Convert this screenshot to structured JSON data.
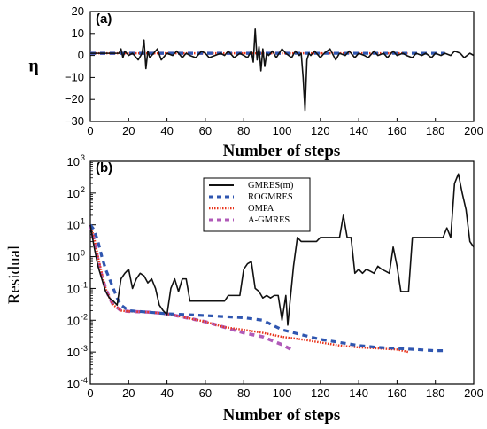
{
  "colors": {
    "gmres": "#111111",
    "rogmres": "#2f56b0",
    "ompa": "#e8341c",
    "agmres": "#b05ab8"
  },
  "chart_data": [
    {
      "type": "line",
      "panel_label": "(a)",
      "xlabel": "Number of steps",
      "ylabel": "η",
      "xlim": [
        0,
        200
      ],
      "ylim": [
        -30,
        20
      ],
      "x_ticks": [
        "0",
        "20",
        "40",
        "60",
        "80",
        "100",
        "120",
        "140",
        "160",
        "180",
        "200"
      ],
      "y_ticks": [
        "20",
        "10",
        "0",
        "−10",
        "−20",
        "−30"
      ],
      "grid": false,
      "series": [
        {
          "name": "GMRES(m)",
          "x": [
            0,
            10,
            15,
            16,
            17,
            18,
            20,
            22,
            25,
            27,
            28,
            29,
            30,
            31,
            33,
            35,
            37,
            40,
            43,
            45,
            48,
            50,
            52,
            55,
            58,
            60,
            62,
            65,
            68,
            70,
            72,
            75,
            78,
            80,
            82,
            84,
            85,
            86,
            87,
            88,
            89,
            90,
            91,
            92,
            93,
            95,
            97,
            100,
            102,
            105,
            107,
            109,
            110,
            111,
            112,
            113,
            114,
            115,
            117,
            120,
            122,
            125,
            128,
            130,
            133,
            135,
            138,
            140,
            143,
            145,
            148,
            150,
            153,
            155,
            158,
            160,
            163,
            165,
            168,
            170,
            173,
            175,
            178,
            180,
            183,
            185,
            188,
            190,
            193,
            195,
            198,
            200
          ],
          "y": [
            1,
            1,
            1,
            3,
            -1,
            2,
            0,
            1,
            -2,
            1,
            7,
            -6,
            2,
            -1,
            1,
            3,
            -2,
            1,
            0,
            2,
            -1,
            1,
            0,
            -1,
            2,
            1,
            -1,
            0,
            1,
            0,
            2,
            -1,
            1,
            0,
            -1,
            2,
            -3,
            12,
            -2,
            4,
            -7,
            3,
            -5,
            1,
            0,
            2,
            -1,
            3,
            1,
            -1,
            2,
            0,
            1,
            -10,
            -25,
            -2,
            1,
            0,
            2,
            -1,
            1,
            3,
            -2,
            1,
            0,
            2,
            -1,
            1,
            0,
            -1,
            2,
            0,
            1,
            -1,
            2,
            0,
            1,
            0,
            -1,
            1,
            0,
            1,
            -1,
            1,
            0,
            1,
            0,
            2,
            1,
            -1,
            1,
            0
          ]
        },
        {
          "name": "ROGMRES",
          "x": [
            0,
            20,
            40,
            60,
            80,
            100,
            120,
            140,
            160,
            185
          ],
          "y": [
            1,
            1,
            1,
            1,
            1,
            1,
            1,
            1,
            1,
            1
          ]
        },
        {
          "name": "OMPA",
          "x": [
            0,
            20,
            40,
            60,
            80,
            100,
            120,
            140,
            166
          ],
          "y": [
            1,
            1,
            1,
            1,
            1,
            1,
            1,
            1,
            1
          ]
        },
        {
          "name": "A-GMRES",
          "x": [
            0,
            20,
            40,
            60,
            80,
            106
          ],
          "y": [
            1,
            1,
            1,
            1,
            1,
            1
          ]
        }
      ]
    },
    {
      "type": "line",
      "panel_label": "(b)",
      "xlabel": "Number of steps",
      "ylabel": "Residual",
      "xlim": [
        0,
        200
      ],
      "ylim": [
        0.0001,
        1000
      ],
      "log_y": true,
      "x_ticks": [
        "0",
        "20",
        "40",
        "60",
        "80",
        "100",
        "120",
        "140",
        "160",
        "180",
        "200"
      ],
      "y_ticks": [
        {
          "base": "10",
          "exp": "3"
        },
        {
          "base": "10",
          "exp": "2"
        },
        {
          "base": "10",
          "exp": "1"
        },
        {
          "base": "10",
          "exp": "0"
        },
        {
          "base": "10",
          "exp": "-1"
        },
        {
          "base": "10",
          "exp": "-2"
        },
        {
          "base": "10",
          "exp": "-3"
        },
        {
          "base": "10",
          "exp": "-4"
        }
      ],
      "grid": false,
      "legend_placement": "top-center",
      "legend": [
        "GMRES(m)",
        "ROGMRES",
        "OMPA",
        "A-GMRES"
      ],
      "series": [
        {
          "name": "GMRES(m)",
          "x": [
            0,
            2,
            4,
            6,
            8,
            10,
            12,
            14,
            16,
            18,
            20,
            22,
            24,
            26,
            28,
            30,
            32,
            34,
            36,
            38,
            40,
            42,
            44,
            46,
            48,
            50,
            52,
            54,
            56,
            58,
            60,
            62,
            64,
            66,
            68,
            70,
            72,
            74,
            76,
            78,
            80,
            82,
            84,
            86,
            88,
            90,
            92,
            94,
            96,
            98,
            100,
            102,
            103,
            104,
            106,
            108,
            110,
            112,
            114,
            116,
            118,
            120,
            122,
            124,
            126,
            128,
            130,
            132,
            134,
            136,
            138,
            140,
            142,
            144,
            146,
            148,
            150,
            152,
            154,
            156,
            158,
            160,
            162,
            164,
            166,
            168,
            170,
            172,
            174,
            176,
            178,
            180,
            182,
            184,
            186,
            188,
            190,
            192,
            194,
            196,
            198,
            200
          ],
          "y": [
            10,
            2,
            0.5,
            0.2,
            0.08,
            0.05,
            0.04,
            0.03,
            0.2,
            0.3,
            0.4,
            0.1,
            0.2,
            0.3,
            0.25,
            0.15,
            0.2,
            0.1,
            0.03,
            0.02,
            0.015,
            0.1,
            0.2,
            0.08,
            0.2,
            0.2,
            0.04,
            0.04,
            0.04,
            0.04,
            0.04,
            0.04,
            0.04,
            0.04,
            0.04,
            0.04,
            0.06,
            0.06,
            0.06,
            0.06,
            0.4,
            0.6,
            0.7,
            0.1,
            0.08,
            0.05,
            0.06,
            0.05,
            0.06,
            0.06,
            0.01,
            0.06,
            0.007,
            0.03,
            0.5,
            4,
            3,
            3,
            3,
            3,
            3,
            4,
            4,
            4,
            4,
            4,
            4,
            20,
            4,
            4,
            0.3,
            0.4,
            0.3,
            0.4,
            0.35,
            0.3,
            0.5,
            0.4,
            0.35,
            0.3,
            2,
            0.5,
            0.08,
            0.08,
            0.08,
            4,
            4,
            4,
            4,
            4,
            4,
            4,
            4,
            4,
            8,
            4,
            200,
            400,
            100,
            30,
            3,
            2
          ]
        },
        {
          "name": "ROGMRES",
          "x": [
            0,
            2,
            4,
            6,
            8,
            10,
            12,
            14,
            16,
            20,
            30,
            40,
            50,
            60,
            70,
            80,
            90,
            100,
            110,
            120,
            130,
            140,
            150,
            160,
            170,
            180,
            185
          ],
          "y": [
            10,
            7,
            3,
            1,
            0.4,
            0.2,
            0.1,
            0.05,
            0.03,
            0.02,
            0.018,
            0.016,
            0.015,
            0.014,
            0.013,
            0.012,
            0.01,
            0.005,
            0.0035,
            0.0025,
            0.002,
            0.0016,
            0.0014,
            0.0013,
            0.0012,
            0.0011,
            0.0011
          ]
        },
        {
          "name": "OMPA",
          "x": [
            0,
            2,
            4,
            6,
            8,
            10,
            12,
            14,
            16,
            20,
            30,
            40,
            50,
            60,
            70,
            80,
            90,
            100,
            110,
            120,
            130,
            140,
            150,
            160,
            166
          ],
          "y": [
            10,
            4,
            1,
            0.3,
            0.1,
            0.05,
            0.03,
            0.025,
            0.02,
            0.019,
            0.018,
            0.016,
            0.012,
            0.009,
            0.006,
            0.005,
            0.004,
            0.003,
            0.0025,
            0.002,
            0.0016,
            0.0014,
            0.0013,
            0.0012,
            0.001
          ]
        },
        {
          "name": "A-GMRES",
          "x": [
            0,
            2,
            4,
            6,
            8,
            10,
            12,
            14,
            16,
            20,
            30,
            40,
            50,
            60,
            70,
            80,
            90,
            100,
            106
          ],
          "y": [
            10,
            3,
            0.8,
            0.25,
            0.1,
            0.05,
            0.03,
            0.025,
            0.02,
            0.019,
            0.018,
            0.016,
            0.012,
            0.009,
            0.006,
            0.004,
            0.003,
            0.0017,
            0.0011
          ]
        }
      ]
    }
  ]
}
